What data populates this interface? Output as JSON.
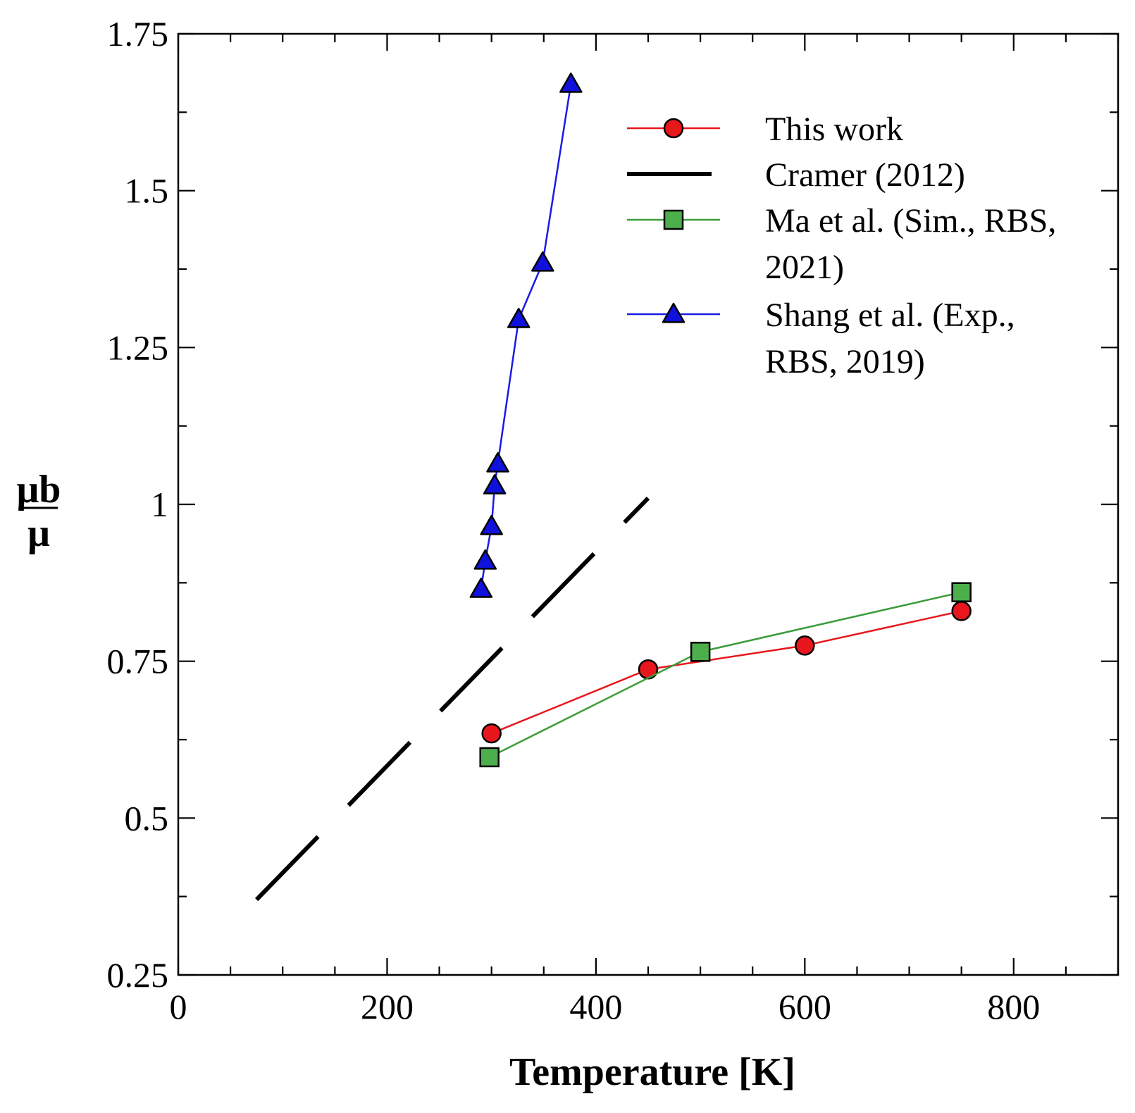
{
  "chart_data": {
    "type": "line",
    "title": "",
    "xlabel": "Temperature [K]",
    "ylabel_numerator": "μb",
    "ylabel_denominator": "μ",
    "xlim": [
      0,
      900
    ],
    "ylim": [
      0.25,
      1.75
    ],
    "x_ticks": [
      0,
      200,
      400,
      600,
      800
    ],
    "x_tick_labels": [
      "0",
      "200",
      "400",
      "600",
      "800"
    ],
    "y_ticks": [
      0.25,
      0.5,
      0.75,
      1,
      1.25,
      1.5,
      1.75
    ],
    "y_tick_labels": [
      "0.25",
      "0.5",
      "0.75",
      "1",
      "1.25",
      "1.5",
      "1.75"
    ],
    "grid": false,
    "legend_position": "top-right",
    "series": [
      {
        "name": "This work",
        "legend_lines": [
          "This work"
        ],
        "color": "#e8171d",
        "marker": "circle",
        "marker_fill": "#e8171d",
        "x": [
          300,
          450,
          600,
          750
        ],
        "y": [
          0.635,
          0.737,
          0.775,
          0.83
        ]
      },
      {
        "name": "Cramer (2012)",
        "legend_lines": [
          "Cramer (2012)"
        ],
        "color": "#000000",
        "marker": "none",
        "dashed": true,
        "x": [
          75,
          450
        ],
        "y": [
          0.37,
          1.01
        ]
      },
      {
        "name": "Ma et al. (Sim., RBS, 2021)",
        "legend_lines": [
          "Ma et al. (Sim., RBS,",
          "2021)"
        ],
        "color": "#3a9c3a",
        "marker": "square",
        "marker_fill": "#4caf4c",
        "x": [
          298,
          500,
          750
        ],
        "y": [
          0.597,
          0.765,
          0.86
        ]
      },
      {
        "name": "Shang et al. (Exp., RBS, 2019)",
        "legend_lines": [
          "Shang et al. (Exp.,",
          "RBS, 2019)"
        ],
        "color": "#1a1ae6",
        "marker": "triangle",
        "marker_fill": "#1111dd",
        "x": [
          290,
          294,
          300,
          303,
          306,
          326,
          349,
          376
        ],
        "y": [
          0.865,
          0.91,
          0.965,
          1.03,
          1.065,
          1.295,
          1.385,
          1.67
        ]
      }
    ]
  }
}
